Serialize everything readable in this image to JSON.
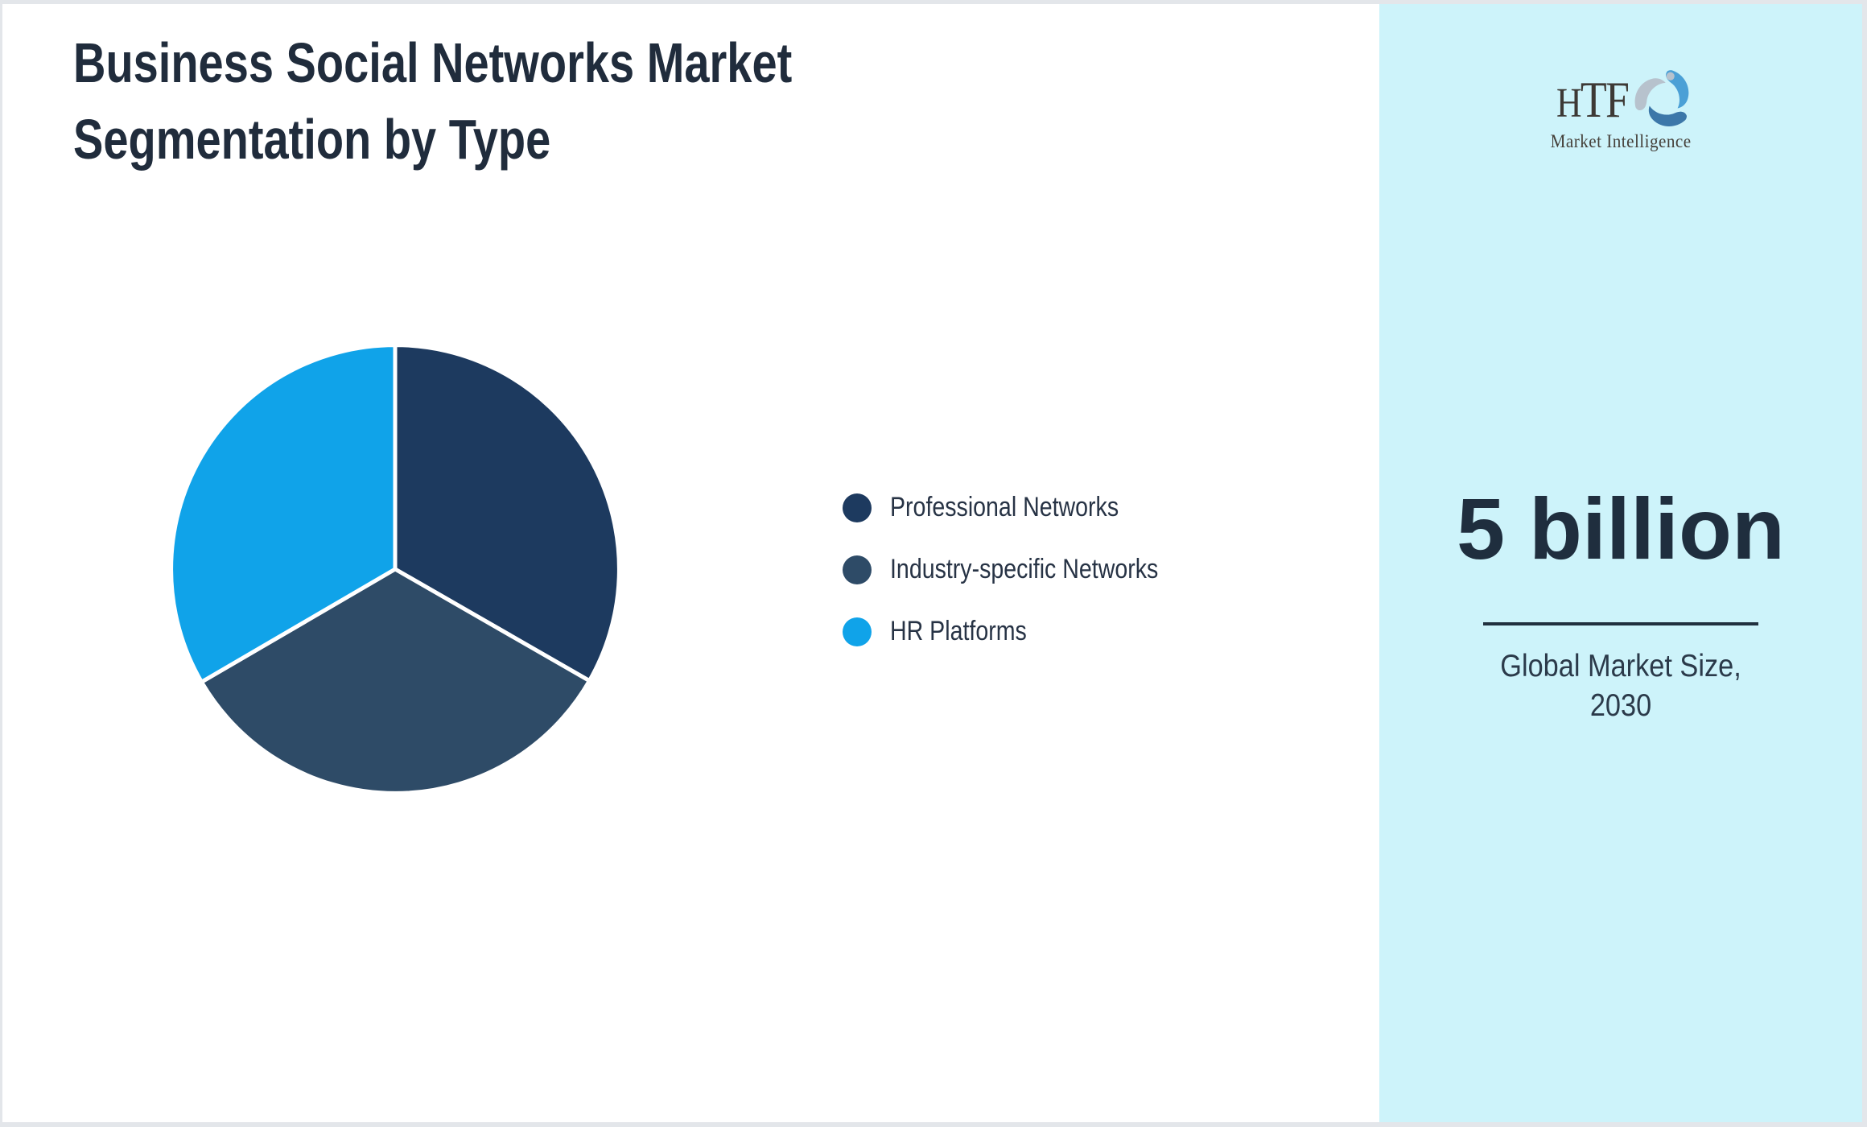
{
  "page": {
    "background": "#ffffff",
    "border_color": "#e3e6ea"
  },
  "title": {
    "line1": "Business Social Networks Market",
    "line2": "Segmentation by Type",
    "color": "#202c3c"
  },
  "chart_data": {
    "type": "pie",
    "title": "Business Social Networks Market Segmentation by Type",
    "ylabel": "share of market (estimated from equal slice angles)",
    "start_angle_deg": 0,
    "clockwise": true,
    "slice_border_color": "#ffffff",
    "legend_position": "right-of-chart",
    "segments": [
      {
        "label": "Professional Networks",
        "value": 33.3,
        "color": "#1d3a5f"
      },
      {
        "label": "Industry-specific Networks",
        "value": 33.3,
        "color": "#2e4b67"
      },
      {
        "label": "HR Platforms",
        "value": 33.4,
        "color": "#10a3e9"
      }
    ]
  },
  "sidebar": {
    "background": "#cdf3fa",
    "logo": {
      "wordmark": "TF",
      "wordmark_first_letter": "H",
      "subtitle": "Market Intelligence",
      "text_color": "#3d3935",
      "swirl_colors": [
        "#4ba0d6",
        "#3c77a9",
        "#b7c2cd"
      ]
    },
    "stat": {
      "value": "5 billion",
      "label_line1": "Global Market Size,",
      "label_line2": "2030",
      "divider_color": "#20303e",
      "text_color": "#1f2e3e"
    }
  }
}
